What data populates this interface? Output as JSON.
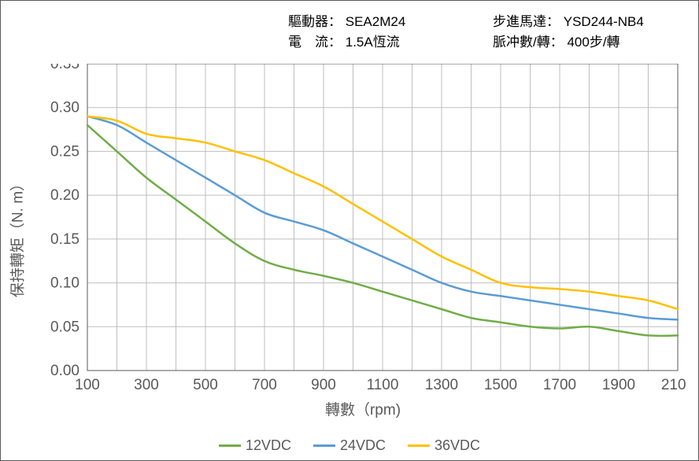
{
  "header": {
    "driver_label": "驅動器：",
    "driver_value": "SEA2M24",
    "motor_label": "步進馬達：",
    "motor_value": "YSD244-NB4",
    "current_label": "電　流：",
    "current_value": "1.5A恆流",
    "pulse_label": "脈冲數/轉：",
    "pulse_value": "400步/轉"
  },
  "chart": {
    "type": "line",
    "background_color": "#ffffff",
    "border_color": "#595959",
    "grid_color": "#bfbfbf",
    "xlabel": "轉數（rpm)",
    "ylabel": "保持轉矩（N. m）",
    "label_fontsize": 19,
    "tick_fontsize": 19,
    "tick_color": "#595959",
    "xlim": [
      100,
      2100
    ],
    "ylim": [
      0.0,
      0.35
    ],
    "xticks": [
      100,
      300,
      500,
      700,
      900,
      1100,
      1300,
      1500,
      1700,
      1900,
      2100
    ],
    "yticks": [
      0.0,
      0.05,
      0.1,
      0.15,
      0.2,
      0.25,
      0.3,
      0.35
    ],
    "line_width": 2.5,
    "x_data": [
      100,
      200,
      300,
      400,
      500,
      600,
      700,
      800,
      900,
      1000,
      1100,
      1200,
      1300,
      1400,
      1500,
      1600,
      1700,
      1800,
      1900,
      2000,
      2100
    ],
    "series": [
      {
        "name": "12VDC",
        "color": "#70ad47",
        "y": [
          0.28,
          0.25,
          0.22,
          0.195,
          0.17,
          0.145,
          0.125,
          0.115,
          0.108,
          0.1,
          0.09,
          0.08,
          0.07,
          0.06,
          0.055,
          0.05,
          0.048,
          0.05,
          0.045,
          0.04,
          0.04
        ]
      },
      {
        "name": "24VDC",
        "color": "#5b9bd5",
        "y": [
          0.29,
          0.28,
          0.26,
          0.24,
          0.22,
          0.2,
          0.18,
          0.17,
          0.16,
          0.145,
          0.13,
          0.115,
          0.1,
          0.09,
          0.085,
          0.08,
          0.075,
          0.07,
          0.065,
          0.06,
          0.058
        ]
      },
      {
        "name": "36VDC",
        "color": "#ffc000",
        "y": [
          0.29,
          0.285,
          0.27,
          0.265,
          0.26,
          0.25,
          0.24,
          0.225,
          0.21,
          0.19,
          0.17,
          0.15,
          0.13,
          0.115,
          0.1,
          0.095,
          0.093,
          0.09,
          0.085,
          0.08,
          0.07
        ]
      }
    ],
    "legend_position": "bottom"
  }
}
